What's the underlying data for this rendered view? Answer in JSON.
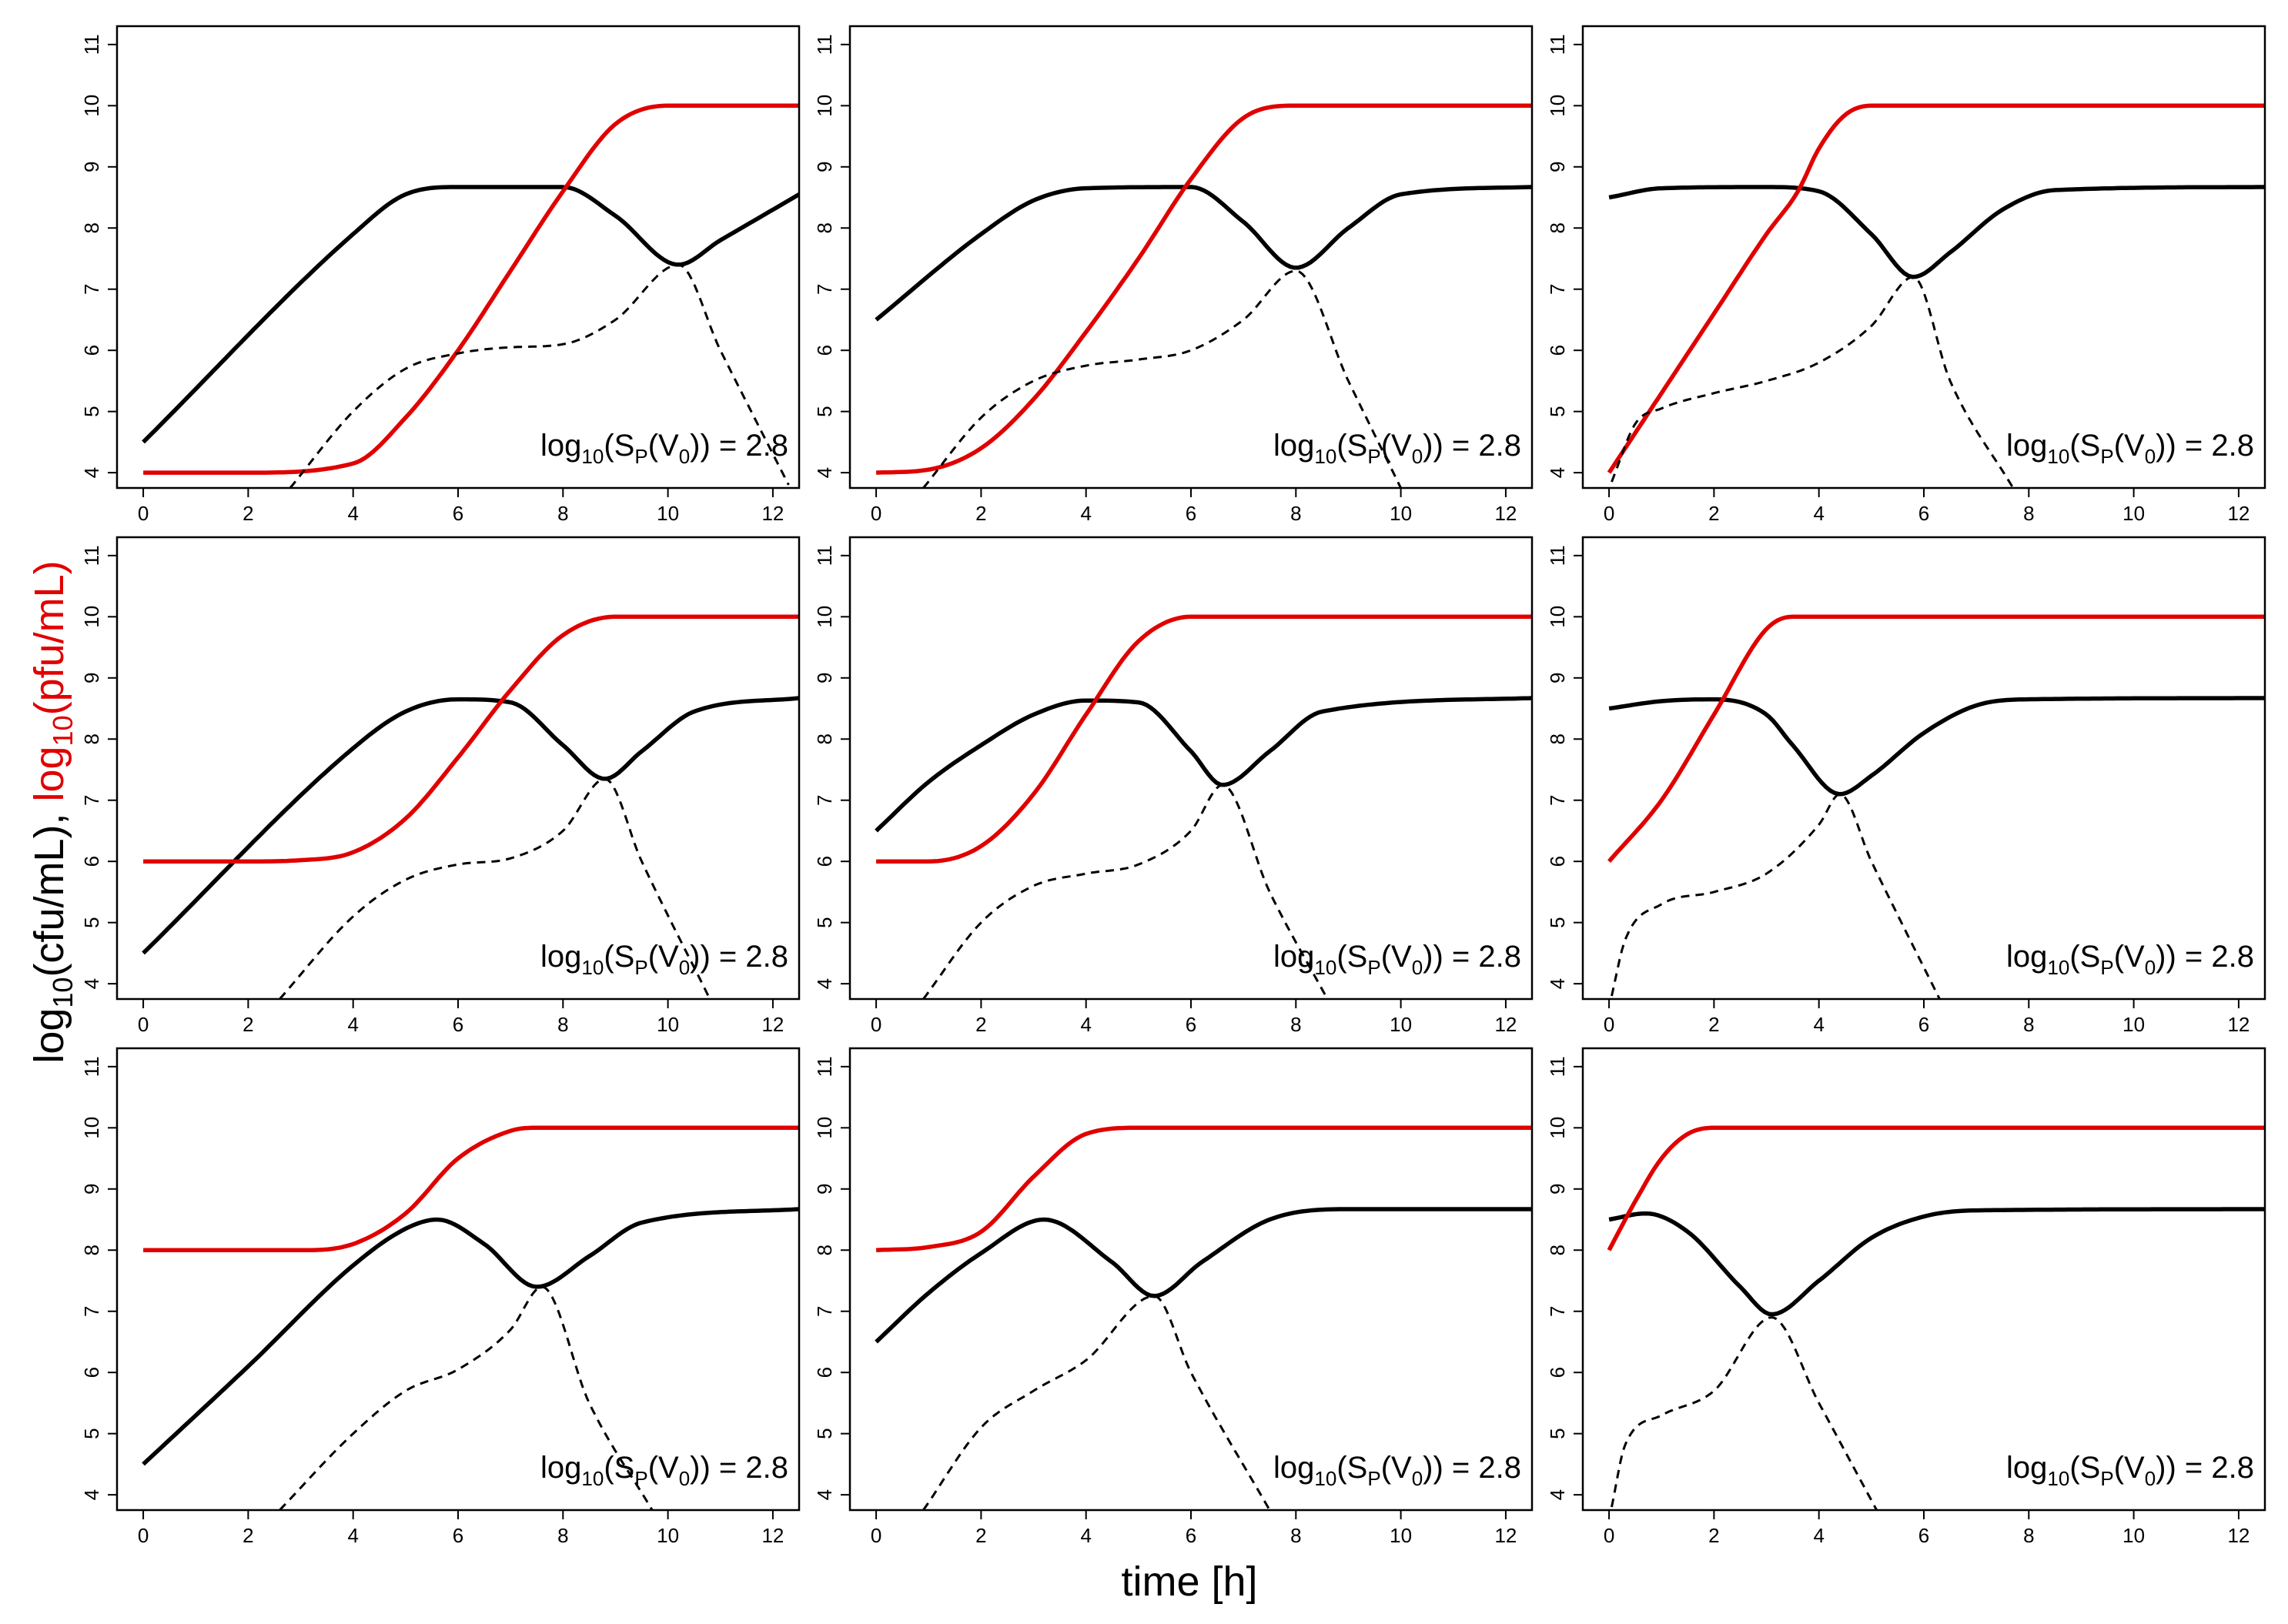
{
  "figure": {
    "xlabel": "time [h]",
    "ylabel_black": "log",
    "ylabel_black_sub": "10",
    "ylabel_black_rest": "(cfu/mL),",
    "ylabel_red": "log",
    "ylabel_red_sub": "10",
    "ylabel_red_rest": "(pfu/mL)",
    "colors": {
      "bacteria": "#000000",
      "phage": "#e00000",
      "axis": "#000000"
    }
  },
  "chart_data": [
    {
      "type": "line",
      "row": 1,
      "col": 1,
      "xlim": [
        -0.5,
        12.5
      ],
      "ylim": [
        3.75,
        11.3
      ],
      "xticks": [
        0,
        2,
        4,
        6,
        8,
        10,
        12
      ],
      "yticks": [
        4,
        5,
        6,
        7,
        8,
        9,
        10,
        11
      ],
      "annotation": {
        "pre": "log",
        "sub1": "10",
        "mid": "(S",
        "sub2": "P",
        "mid2": "(V",
        "sub3": "0",
        "post": ")) = 2.8"
      },
      "series": [
        {
          "name": "bacteria total",
          "style": "solid",
          "color": "#000000",
          "x": [
            0,
            4,
            5,
            6,
            8,
            9,
            10.2,
            11,
            12.5
          ],
          "y": [
            4.5,
            7.9,
            8.55,
            8.67,
            8.67,
            8.2,
            7.4,
            7.8,
            8.55
          ]
        },
        {
          "name": "phage",
          "style": "solid",
          "color": "#e00000",
          "x": [
            0,
            2,
            4,
            5,
            6,
            7,
            8,
            9,
            10,
            12.5
          ],
          "y": [
            4.0,
            4.0,
            4.15,
            4.9,
            6.0,
            7.3,
            8.6,
            9.7,
            10.0,
            10.0
          ]
        },
        {
          "name": "infected bacteria",
          "style": "dashed",
          "color": "#000000",
          "x": [
            2.8,
            4,
            5,
            6,
            7,
            8,
            9,
            10.2,
            11,
            12.3
          ],
          "y": [
            3.75,
            5.0,
            5.7,
            5.95,
            6.05,
            6.1,
            6.5,
            7.4,
            6.0,
            3.8
          ]
        }
      ]
    },
    {
      "type": "line",
      "row": 1,
      "col": 2,
      "xlim": [
        -0.5,
        12.5
      ],
      "ylim": [
        3.75,
        11.3
      ],
      "xticks": [
        0,
        2,
        4,
        6,
        8,
        10,
        12
      ],
      "yticks": [
        4,
        5,
        6,
        7,
        8,
        9,
        10,
        11
      ],
      "annotation": {
        "pre": "log",
        "sub1": "10",
        "mid": "(S",
        "sub2": "P",
        "mid2": "(V",
        "sub3": "0",
        "post": ")) = 2.8"
      },
      "series": [
        {
          "name": "bacteria total",
          "style": "solid",
          "color": "#000000",
          "x": [
            0,
            2,
            3,
            4,
            6,
            7,
            8,
            9,
            10,
            12.5
          ],
          "y": [
            6.5,
            7.9,
            8.45,
            8.65,
            8.67,
            8.1,
            7.35,
            8.0,
            8.55,
            8.67
          ]
        },
        {
          "name": "phage",
          "style": "solid",
          "color": "#e00000",
          "x": [
            0,
            1,
            2,
            3,
            4,
            5,
            6,
            7,
            8,
            12.5
          ],
          "y": [
            4.0,
            4.05,
            4.4,
            5.2,
            6.3,
            7.5,
            8.8,
            9.8,
            10.0,
            10.0
          ]
        },
        {
          "name": "infected bacteria",
          "style": "dashed",
          "color": "#000000",
          "x": [
            0.9,
            2,
            3,
            4,
            5,
            6,
            7,
            8,
            9,
            10
          ],
          "y": [
            3.75,
            4.9,
            5.5,
            5.75,
            5.85,
            6.0,
            6.5,
            7.3,
            5.5,
            3.75
          ]
        }
      ]
    },
    {
      "type": "line",
      "row": 1,
      "col": 3,
      "xlim": [
        -0.5,
        12.5
      ],
      "ylim": [
        3.75,
        11.3
      ],
      "xticks": [
        0,
        2,
        4,
        6,
        8,
        10,
        12
      ],
      "yticks": [
        4,
        5,
        6,
        7,
        8,
        9,
        10,
        11
      ],
      "annotation": {
        "pre": "log",
        "sub1": "10",
        "mid": "(S",
        "sub2": "P",
        "mid2": "(V",
        "sub3": "0",
        "post": ")) = 2.8"
      },
      "series": [
        {
          "name": "bacteria total",
          "style": "solid",
          "color": "#000000",
          "x": [
            0,
            1,
            3,
            4,
            5,
            5.8,
            6.5,
            7.5,
            8.5,
            12.5
          ],
          "y": [
            8.5,
            8.65,
            8.67,
            8.6,
            7.9,
            7.2,
            7.6,
            8.3,
            8.62,
            8.67
          ]
        },
        {
          "name": "phage",
          "style": "solid",
          "color": "#e00000",
          "x": [
            0,
            1,
            2,
            3,
            3.6,
            4,
            4.5,
            5,
            12.5
          ],
          "y": [
            4.0,
            5.3,
            6.6,
            7.9,
            8.6,
            9.3,
            9.85,
            10.0,
            10.0
          ]
        },
        {
          "name": "infected bacteria",
          "style": "dashed",
          "color": "#000000",
          "x": [
            0.05,
            0.5,
            1,
            2,
            3,
            4,
            5,
            5.8,
            6.5,
            7.7
          ],
          "y": [
            3.85,
            4.8,
            5.05,
            5.3,
            5.5,
            5.8,
            6.4,
            7.2,
            5.5,
            3.75
          ]
        }
      ]
    },
    {
      "type": "line",
      "row": 2,
      "col": 1,
      "xlim": [
        -0.5,
        12.5
      ],
      "ylim": [
        3.75,
        11.3
      ],
      "xticks": [
        0,
        2,
        4,
        6,
        8,
        10,
        12
      ],
      "yticks": [
        4,
        5,
        6,
        7,
        8,
        9,
        10,
        11
      ],
      "annotation": {
        "pre": "log",
        "sub1": "10",
        "mid": "(S",
        "sub2": "P",
        "mid2": "(V",
        "sub3": "0",
        "post": ")) = 2.8"
      },
      "series": [
        {
          "name": "bacteria total",
          "style": "solid",
          "color": "#000000",
          "x": [
            0,
            4,
            5,
            6,
            7,
            8,
            8.8,
            9.5,
            10.5,
            12.5
          ],
          "y": [
            4.5,
            7.85,
            8.45,
            8.65,
            8.6,
            7.9,
            7.35,
            7.8,
            8.45,
            8.67
          ]
        },
        {
          "name": "phage",
          "style": "solid",
          "color": "#e00000",
          "x": [
            0,
            2,
            3,
            4,
            5,
            6,
            7,
            8,
            9,
            12.5
          ],
          "y": [
            6.0,
            6.0,
            6.02,
            6.15,
            6.7,
            7.7,
            8.8,
            9.7,
            10.0,
            10.0
          ]
        },
        {
          "name": "infected bacteria",
          "style": "dashed",
          "color": "#000000",
          "x": [
            2.6,
            4,
            5,
            6,
            7,
            8,
            8.8,
            9.5,
            10.8
          ],
          "y": [
            3.75,
            5.1,
            5.7,
            5.95,
            6.05,
            6.5,
            7.35,
            6.0,
            3.75
          ]
        }
      ]
    },
    {
      "type": "line",
      "row": 2,
      "col": 2,
      "xlim": [
        -0.5,
        12.5
      ],
      "ylim": [
        3.75,
        11.3
      ],
      "xticks": [
        0,
        2,
        4,
        6,
        8,
        10,
        12
      ],
      "yticks": [
        4,
        5,
        6,
        7,
        8,
        9,
        10,
        11
      ],
      "annotation": {
        "pre": "log",
        "sub1": "10",
        "mid": "(S",
        "sub2": "P",
        "mid2": "(V",
        "sub3": "0",
        "post": ")) = 2.8"
      },
      "series": [
        {
          "name": "bacteria total",
          "style": "solid",
          "color": "#000000",
          "x": [
            0,
            1,
            2,
            3,
            4,
            5,
            6,
            6.6,
            7.5,
            8.5,
            12.5
          ],
          "y": [
            6.5,
            7.3,
            7.9,
            8.4,
            8.63,
            8.6,
            7.8,
            7.25,
            7.8,
            8.45,
            8.67
          ]
        },
        {
          "name": "phage",
          "style": "solid",
          "color": "#e00000",
          "x": [
            0,
            1,
            2,
            3,
            4,
            5,
            6,
            12.5
          ],
          "y": [
            6.0,
            6.0,
            6.25,
            7.1,
            8.4,
            9.6,
            10.0,
            10.0
          ]
        },
        {
          "name": "infected bacteria",
          "style": "dashed",
          "color": "#000000",
          "x": [
            0.9,
            2,
            3,
            4,
            5,
            6,
            6.6,
            7.5,
            8.6
          ],
          "y": [
            3.75,
            5.0,
            5.6,
            5.8,
            5.95,
            6.5,
            7.25,
            5.5,
            3.75
          ]
        }
      ]
    },
    {
      "type": "line",
      "row": 2,
      "col": 3,
      "xlim": [
        -0.5,
        12.5
      ],
      "ylim": [
        3.75,
        11.3
      ],
      "xticks": [
        0,
        2,
        4,
        6,
        8,
        10,
        12
      ],
      "yticks": [
        4,
        5,
        6,
        7,
        8,
        9,
        10,
        11
      ],
      "annotation": {
        "pre": "log",
        "sub1": "10",
        "mid": "(S",
        "sub2": "P",
        "mid2": "(V",
        "sub3": "0",
        "post": ")) = 2.8"
      },
      "series": [
        {
          "name": "bacteria total",
          "style": "solid",
          "color": "#000000",
          "x": [
            0,
            1,
            2,
            3,
            3.5,
            4.4,
            5,
            6,
            7,
            8,
            12.5
          ],
          "y": [
            8.5,
            8.62,
            8.65,
            8.4,
            7.9,
            7.1,
            7.4,
            8.1,
            8.55,
            8.65,
            8.67
          ]
        },
        {
          "name": "phage",
          "style": "solid",
          "color": "#e00000",
          "x": [
            0,
            1,
            2,
            3,
            3.5,
            12.5
          ],
          "y": [
            6.0,
            7.0,
            8.4,
            9.8,
            10.0,
            10.0
          ]
        },
        {
          "name": "infected bacteria",
          "style": "dashed",
          "color": "#000000",
          "x": [
            0.05,
            0.3,
            1,
            2,
            3,
            4,
            4.4,
            5,
            6.3
          ],
          "y": [
            3.8,
            4.7,
            5.3,
            5.5,
            5.8,
            6.6,
            7.1,
            6.0,
            3.75
          ]
        }
      ]
    },
    {
      "type": "line",
      "row": 3,
      "col": 1,
      "xlim": [
        -0.5,
        12.5
      ],
      "ylim": [
        3.75,
        11.3
      ],
      "xticks": [
        0,
        2,
        4,
        6,
        8,
        10,
        12
      ],
      "yticks": [
        4,
        5,
        6,
        7,
        8,
        9,
        10,
        11
      ],
      "annotation": {
        "pre": "log",
        "sub1": "10",
        "mid": "(S",
        "sub2": "P",
        "mid2": "(V",
        "sub3": "0",
        "post": ")) = 2.8"
      },
      "series": [
        {
          "name": "bacteria total",
          "style": "solid",
          "color": "#000000",
          "x": [
            0,
            2,
            4,
            5,
            5.6,
            6.5,
            7.5,
            8.5,
            9.5,
            12.5
          ],
          "y": [
            4.5,
            6.1,
            7.75,
            8.35,
            8.5,
            8.1,
            7.4,
            7.9,
            8.45,
            8.67
          ]
        },
        {
          "name": "phage",
          "style": "solid",
          "color": "#e00000",
          "x": [
            0,
            3,
            4,
            5,
            6,
            7,
            7.5,
            12.5
          ],
          "y": [
            8.0,
            8.0,
            8.1,
            8.6,
            9.5,
            9.95,
            10.0,
            10.0
          ]
        },
        {
          "name": "infected bacteria",
          "style": "dashed",
          "color": "#000000",
          "x": [
            2.6,
            4,
            5,
            6,
            7,
            7.6,
            8.5,
            9.7
          ],
          "y": [
            3.75,
            5.0,
            5.7,
            6.05,
            6.7,
            7.4,
            5.5,
            3.75
          ]
        }
      ]
    },
    {
      "type": "line",
      "row": 3,
      "col": 2,
      "xlim": [
        -0.5,
        12.5
      ],
      "ylim": [
        3.75,
        11.3
      ],
      "xticks": [
        0,
        2,
        4,
        6,
        8,
        10,
        12
      ],
      "yticks": [
        4,
        5,
        6,
        7,
        8,
        9,
        10,
        11
      ],
      "annotation": {
        "pre": "log",
        "sub1": "10",
        "mid": "(S",
        "sub2": "P",
        "mid2": "(V",
        "sub3": "0",
        "post": ")) = 2.8"
      },
      "series": [
        {
          "name": "bacteria total",
          "style": "solid",
          "color": "#000000",
          "x": [
            0,
            1,
            2,
            3.2,
            4.5,
            5.3,
            6.2,
            7.5,
            9,
            12.5
          ],
          "y": [
            6.5,
            7.3,
            7.95,
            8.5,
            7.8,
            7.25,
            7.8,
            8.5,
            8.67,
            8.67
          ]
        },
        {
          "name": "phage",
          "style": "solid",
          "color": "#e00000",
          "x": [
            0,
            1,
            2,
            3,
            4,
            5,
            12.5
          ],
          "y": [
            8.0,
            8.05,
            8.3,
            9.2,
            9.9,
            10.0,
            10.0
          ]
        },
        {
          "name": "infected bacteria",
          "style": "dashed",
          "color": "#000000",
          "x": [
            0.9,
            2,
            3,
            4,
            5.3,
            6,
            7.5
          ],
          "y": [
            3.75,
            5.1,
            5.7,
            6.2,
            7.25,
            6.0,
            3.75
          ]
        }
      ]
    },
    {
      "type": "line",
      "row": 3,
      "col": 3,
      "xlim": [
        -0.5,
        12.5
      ],
      "ylim": [
        3.75,
        11.3
      ],
      "xticks": [
        0,
        2,
        4,
        6,
        8,
        10,
        12
      ],
      "yticks": [
        4,
        5,
        6,
        7,
        8,
        9,
        10,
        11
      ],
      "annotation": {
        "pre": "log",
        "sub1": "10",
        "mid": "(S",
        "sub2": "P",
        "mid2": "(V",
        "sub3": "0",
        "post": ")) = 2.8"
      },
      "series": [
        {
          "name": "bacteria total",
          "style": "solid",
          "color": "#000000",
          "x": [
            0,
            0.7,
            1.5,
            2.5,
            3.1,
            4,
            5,
            6,
            7,
            12.5
          ],
          "y": [
            8.5,
            8.6,
            8.3,
            7.4,
            6.95,
            7.5,
            8.2,
            8.55,
            8.65,
            8.67
          ]
        },
        {
          "name": "phage",
          "style": "solid",
          "color": "#e00000",
          "x": [
            0,
            0.5,
            1,
            1.5,
            2,
            12.5
          ],
          "y": [
            8.0,
            8.8,
            9.5,
            9.9,
            10.0,
            10.0
          ]
        },
        {
          "name": "infected bacteria",
          "style": "dashed",
          "color": "#000000",
          "x": [
            0.05,
            0.3,
            1,
            2,
            3.1,
            4,
            5.1
          ],
          "y": [
            3.8,
            4.8,
            5.3,
            5.7,
            6.9,
            5.5,
            3.75
          ]
        }
      ]
    }
  ]
}
